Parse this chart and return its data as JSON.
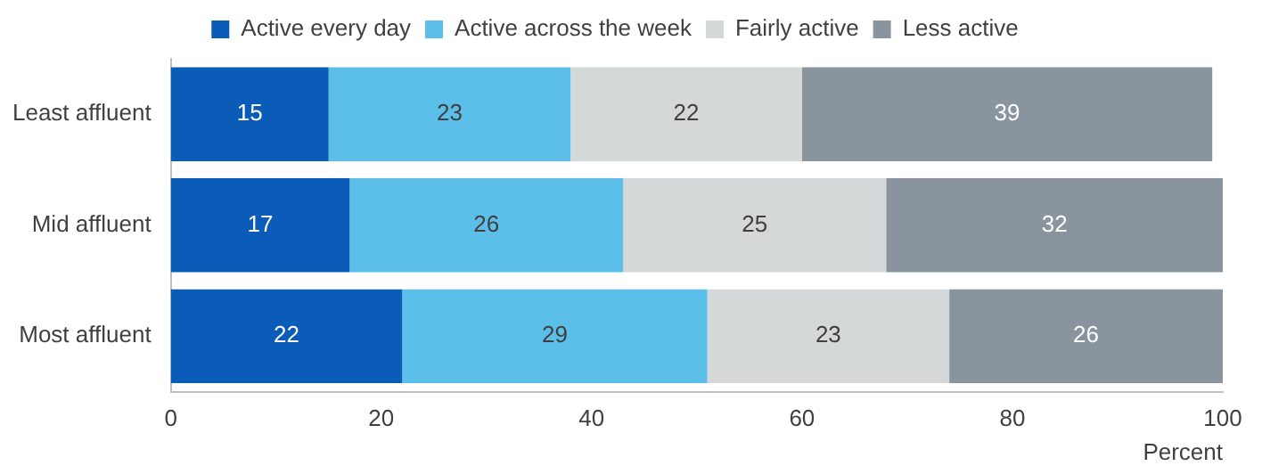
{
  "chart_data": {
    "type": "bar",
    "orientation": "horizontal",
    "stacked": true,
    "categories": [
      "Least affluent",
      "Mid affluent",
      "Most affluent"
    ],
    "series": [
      {
        "name": "Active every day",
        "color": "#0a5cb8",
        "values": [
          15,
          17,
          22
        ]
      },
      {
        "name": "Active across the week",
        "color": "#5bbfea",
        "values": [
          23,
          26,
          29
        ]
      },
      {
        "name": "Fairly active",
        "color": "#d4d8d8",
        "values": [
          22,
          25,
          23
        ]
      },
      {
        "name": "Less active",
        "color": "#8a949e",
        "values": [
          39,
          32,
          26
        ]
      }
    ],
    "xlim": [
      0,
      100
    ],
    "xticks": [
      0,
      20,
      40,
      60,
      80,
      100
    ],
    "xlabel": "Percent",
    "legend": "top",
    "grid": false,
    "data_labels": true
  }
}
